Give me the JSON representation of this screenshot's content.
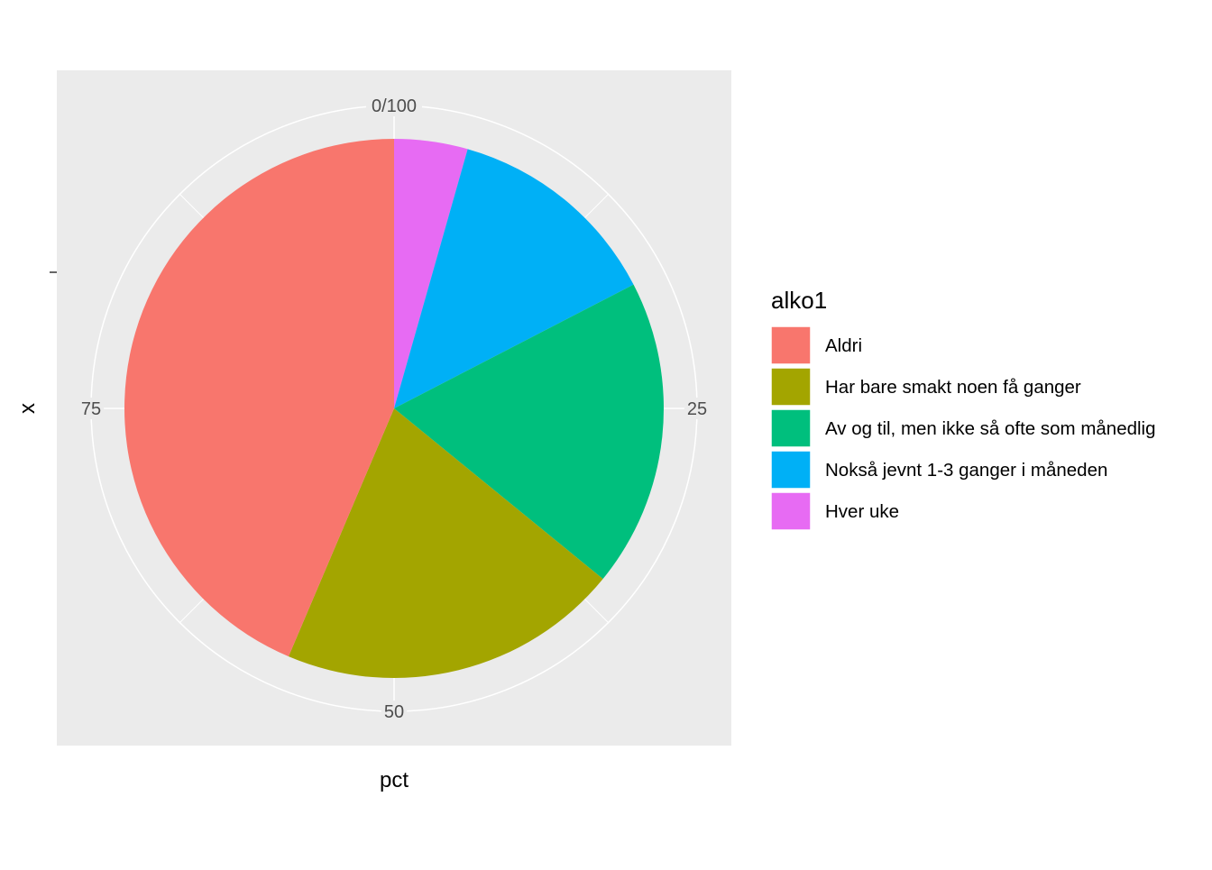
{
  "chart_data": {
    "type": "pie",
    "xlabel": "pct",
    "ylabel": "x",
    "theta_ticks": [
      "0/100",
      "25",
      "50",
      "75"
    ],
    "theta_tick_values": [
      0,
      25,
      50,
      75
    ],
    "theta_range": [
      0,
      100
    ],
    "grid": true,
    "panel_background": "#EBEBEB",
    "legend_position": "right",
    "legend": {
      "title": "alko1",
      "entries": [
        "Aldri",
        "Har bare smakt noen få ganger",
        "Av og til, men ikke så ofte som månedlig",
        "Nokså jevnt 1-3 ganger i måneden",
        "Hver uke"
      ]
    },
    "slices": [
      {
        "label": "Hver uke",
        "value": 4.4,
        "color": "#E76BF3"
      },
      {
        "label": "Nokså jevnt 1-3 ganger i måneden",
        "value": 13.0,
        "color": "#00B0F6"
      },
      {
        "label": "Av og til, men ikke så ofte som månedlig",
        "value": 18.5,
        "color": "#00BF7D"
      },
      {
        "label": "Har bare smakt noen få ganger",
        "value": 20.5,
        "color": "#A3A500"
      },
      {
        "label": "Aldri",
        "value": 43.6,
        "color": "#F8766D"
      }
    ],
    "legend_colors": [
      "#F8766D",
      "#A3A500",
      "#00BF7D",
      "#00B0F6",
      "#E76BF3"
    ]
  }
}
